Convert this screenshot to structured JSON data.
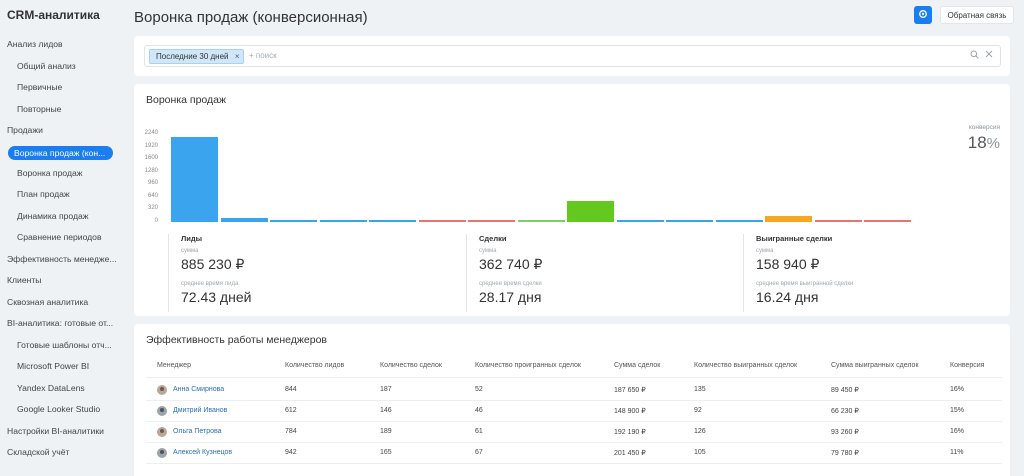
{
  "sidebar": {
    "app_title": "CRM-аналитика",
    "items": [
      {
        "label": "Анализ лидов",
        "level": 0
      },
      {
        "label": "Общий анализ",
        "level": 1
      },
      {
        "label": "Первичные",
        "level": 1
      },
      {
        "label": "Повторные",
        "level": 1
      },
      {
        "label": "Продажи",
        "level": 0
      },
      {
        "label": "Воронка продаж (кон...",
        "level": 1,
        "active": true
      },
      {
        "label": "Воронка продаж",
        "level": 1
      },
      {
        "label": "План продаж",
        "level": 1
      },
      {
        "label": "Динамика продаж",
        "level": 1
      },
      {
        "label": "Сравнение периодов",
        "level": 1
      },
      {
        "label": "Эффективность менедже...",
        "level": 0
      },
      {
        "label": "Клиенты",
        "level": 0
      },
      {
        "label": "Сквозная аналитика",
        "level": 0
      },
      {
        "label": "BI-аналитика: готовые от...",
        "level": 0
      },
      {
        "label": "Готовые шаблоны отч...",
        "level": 1
      },
      {
        "label": "Microsoft Power BI",
        "level": 1
      },
      {
        "label": "Yandex DataLens",
        "level": 1
      },
      {
        "label": "Google Looker Studio",
        "level": 1
      },
      {
        "label": "Настройки BI-аналитики",
        "level": 0
      },
      {
        "label": "Складской учёт",
        "level": 0
      }
    ]
  },
  "header": {
    "title": "Воронка продаж (конверсионная)",
    "settings_icon": "gear-icon",
    "feedback_label": "Обратная связь"
  },
  "filter": {
    "chip_label": "Последние 30 дней",
    "search_placeholder": "+ поиск",
    "search_icon": "search-icon",
    "clear_icon": "close-icon"
  },
  "funnel": {
    "title": "Воронка продаж",
    "conversion_label": "конверсия",
    "conversion_value": "18",
    "conversion_unit": "%",
    "y_ticks": [
      "2240",
      "1920",
      "1600",
      "1280",
      "960",
      "640",
      "320",
      "0"
    ],
    "y_max": 2240,
    "stages": [
      {
        "value": 2160,
        "color": "#3aa4ee"
      },
      {
        "value": 95,
        "color": "#3aa4ee"
      },
      {
        "value": 28,
        "color": "#3aa4ee"
      },
      {
        "value": 28,
        "color": "#3aa4ee"
      },
      {
        "value": 28,
        "color": "#3aa4ee"
      },
      {
        "value": 28,
        "color": "#e87474"
      },
      {
        "value": 28,
        "color": "#e87474"
      },
      {
        "value": 28,
        "color": "#7cd06b"
      },
      {
        "value": 530,
        "color": "#63c91f"
      },
      {
        "value": 28,
        "color": "#3aa4ee"
      },
      {
        "value": 28,
        "color": "#3aa4ee"
      },
      {
        "value": 28,
        "color": "#3aa4ee"
      },
      {
        "value": 150,
        "color": "#f5a623"
      },
      {
        "value": 28,
        "color": "#e87474"
      },
      {
        "value": 28,
        "color": "#e87474"
      }
    ],
    "metrics": [
      {
        "name": "Лиды",
        "sub": "сумма",
        "amount": "885 230 ₽",
        "sub2": "среднее время лида",
        "time": "72.43 дней"
      },
      {
        "name": "Сделки",
        "sub": "сумма",
        "amount": "362 740 ₽",
        "sub2": "среднее время сделки",
        "time": "28.17 дня"
      },
      {
        "name": "Выигранные сделки",
        "sub": "сумма",
        "amount": "158 940 ₽",
        "sub2": "среднее время выигранной сделки",
        "time": "16.24 дня"
      }
    ]
  },
  "managers": {
    "title": "Эффективность работы менеджеров",
    "columns": [
      "Менеджер",
      "Количество лидов",
      "Количество сделок",
      "Количество проигранных сделок",
      "Сумма сделок",
      "Количество выигранных сделок",
      "Сумма выигранных сделок",
      "Конверсия"
    ],
    "rows": [
      {
        "name": "Анна Смирнова",
        "gender": "f",
        "cells": [
          "844",
          "187",
          "52",
          "187 650 ₽",
          "135",
          "89 450 ₽",
          "16%"
        ]
      },
      {
        "name": "Дмитрий Иванов",
        "gender": "m",
        "cells": [
          "612",
          "146",
          "46",
          "148 900 ₽",
          "92",
          "66 230 ₽",
          "15%"
        ]
      },
      {
        "name": "Ольга Петрова",
        "gender": "f",
        "cells": [
          "784",
          "189",
          "61",
          "192 190 ₽",
          "126",
          "93 260 ₽",
          "16%"
        ]
      },
      {
        "name": "Алексей Кузнецов",
        "gender": "m",
        "cells": [
          "942",
          "165",
          "67",
          "201 450 ₽",
          "105",
          "79 780 ₽",
          "11%"
        ]
      }
    ]
  }
}
